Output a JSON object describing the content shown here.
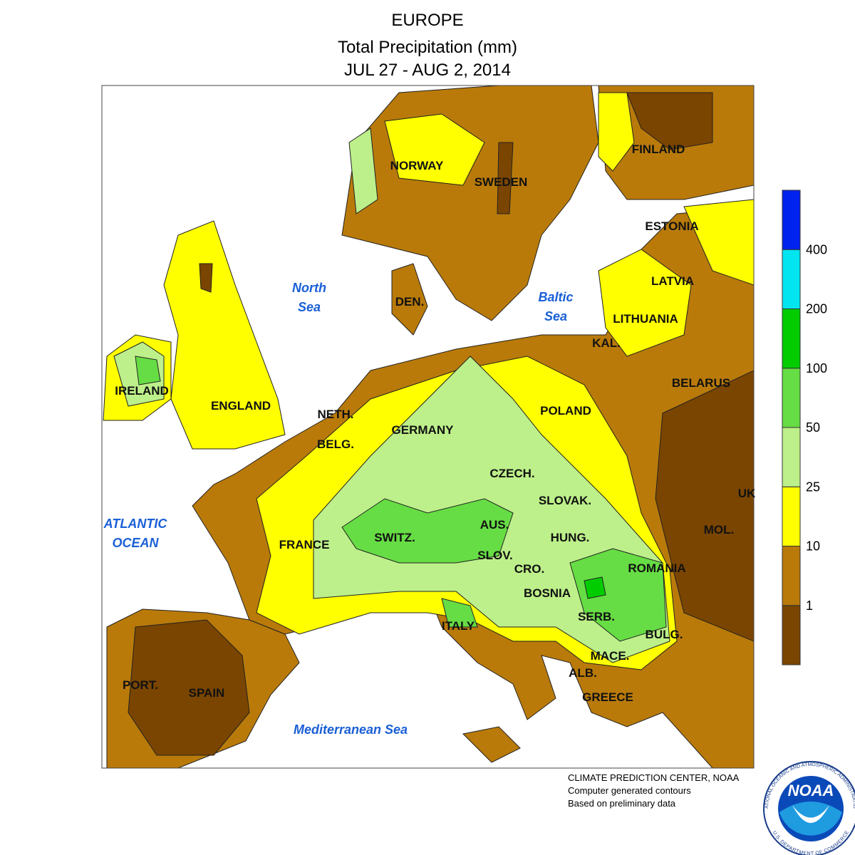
{
  "title": [
    "EUROPE",
    "Total Precipitation (mm)",
    "JUL 27 - AUG 2, 2014"
  ],
  "countries": [
    "NORWAY",
    "SWEDEN",
    "FINLAND",
    "ESTONIA",
    "LATVIA",
    "LITHUANIA",
    "KAL.",
    "BELARUS",
    "DEN.",
    "IRELAND",
    "ENGLAND",
    "NETH.",
    "BELG.",
    "GERMANY",
    "POLAND",
    "CZECH.",
    "SLOVAK.",
    "UK",
    "MOL.",
    "AUS.",
    "SWITZ.",
    "HUNG.",
    "FRANCE",
    "SLOV.",
    "CRO.",
    "ROMANIA",
    "BOSNIA",
    "SERB.",
    "ITALY",
    "BULG.",
    "MACE.",
    "ALB.",
    "PORT.",
    "SPAIN",
    "GREECE"
  ],
  "seas": [
    [
      "North",
      "Sea"
    ],
    [
      "Baltic",
      "Sea"
    ],
    [
      "ATLANTIC",
      "OCEAN"
    ],
    [
      "Mediterranean Sea"
    ]
  ],
  "legend": {
    "colors": [
      "#7a4500",
      "#b97a0a",
      "#ffff00",
      "#bdf08a",
      "#66dd44",
      "#00cc00",
      "#00e5f0",
      "#0022ee"
    ],
    "ticks": [
      1,
      10,
      25,
      50,
      100,
      200,
      400
    ]
  },
  "footer": [
    "CLIMATE PREDICTION CENTER, NOAA",
    "Computer generated contours",
    "Based on preliminary data"
  ],
  "logo": {
    "name": "NOAA",
    "ring_top": "NATIONAL OCEANIC AND ATMOSPHERIC ADMINISTRATION",
    "ring_bottom": "U.S. DEPARTMENT OF COMMERCE"
  }
}
